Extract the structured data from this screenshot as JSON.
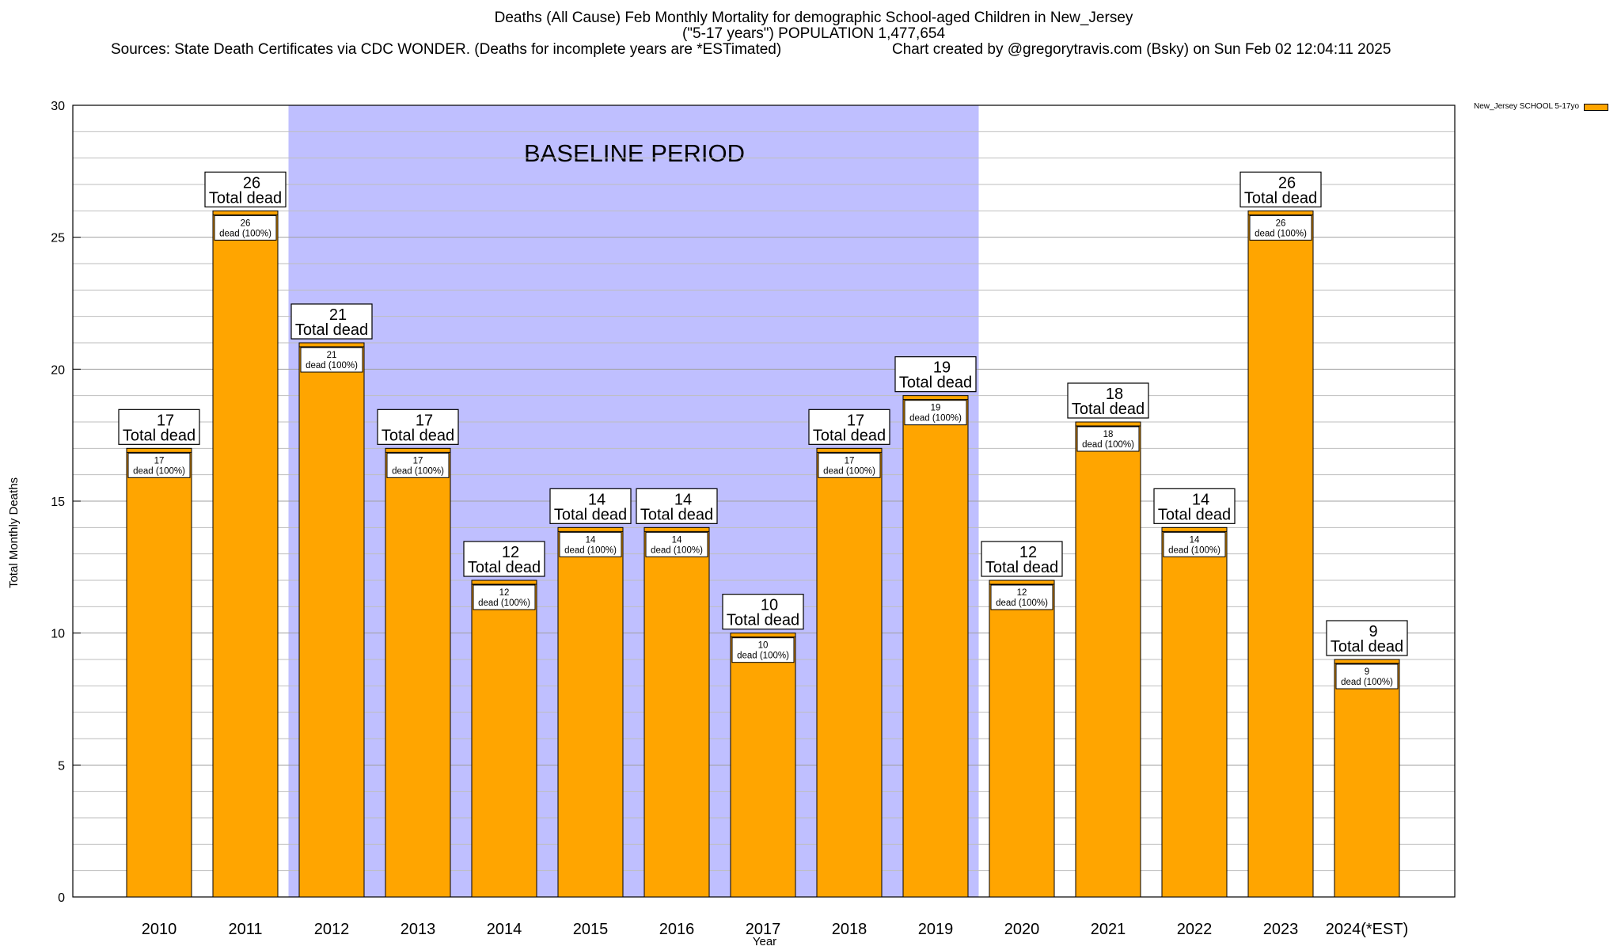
{
  "header": {
    "title_line1": "Deaths (All Cause) Feb Monthly Mortality for demographic School-aged Children in New_Jersey",
    "title_line2": "(\"5-17 years\") POPULATION 1,477,654",
    "sources": "Sources: State Death Certificates via CDC WONDER. (Deaths for incomplete years are *ESTimated)",
    "credit": "Chart created by @gregorytravis.com (Bsky) on Sun Feb 02 12:04:11 2025"
  },
  "legend": {
    "label": "New_Jersey SCHOOL 5-17yo"
  },
  "colors": {
    "bar": "#FFA500",
    "baseline_band": "#BFBFFF",
    "grid": "#BEBEBE"
  },
  "chart_data": {
    "type": "bar",
    "title": "Deaths (All Cause) Feb Monthly Mortality for demographic School-aged Children in New_Jersey",
    "subtitle": "(\"5-17 years\") POPULATION 1,477,654",
    "xlabel": "Year",
    "ylabel": "Total Monthly Deaths",
    "ylim": [
      0,
      30
    ],
    "yticks": [
      0,
      5,
      10,
      15,
      20,
      25,
      30
    ],
    "grid": true,
    "legend_position": "top-right",
    "categories": [
      "2010",
      "2011",
      "2012",
      "2013",
      "2014",
      "2015",
      "2016",
      "2017",
      "2018",
      "2019",
      "2020",
      "2021",
      "2022",
      "2023",
      "2024(*EST)"
    ],
    "series": [
      {
        "name": "New_Jersey SCHOOL 5-17yo",
        "values": [
          17,
          26,
          21,
          17,
          12,
          14,
          14,
          10,
          17,
          19,
          12,
          18,
          14,
          26,
          9
        ]
      }
    ],
    "top_label_suffix": "Total dead",
    "inner_label_suffix": "dead (100%)",
    "annotation": {
      "text": "BASELINE PERIOD",
      "from_category": "2012",
      "to_category": "2019"
    }
  }
}
